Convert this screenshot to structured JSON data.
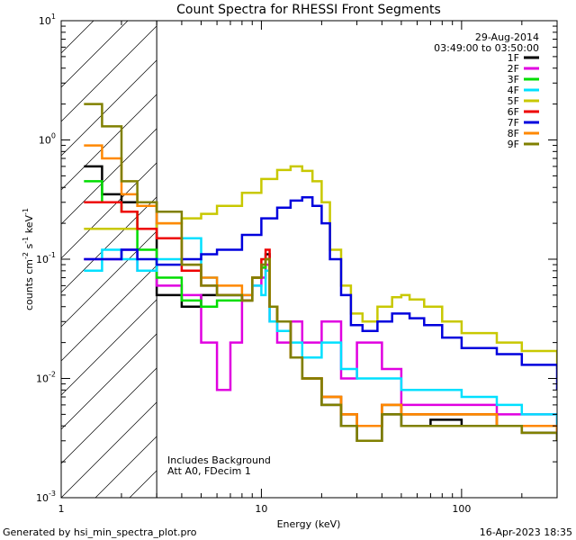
{
  "footer": {
    "generated_by": "Generated by hsi_min_spectra_plot.pro",
    "timestamp": "16-Apr-2023 18:35"
  },
  "chart_data": {
    "type": "line",
    "title": "Count Spectra for RHESSI Front Segments",
    "xlabel": "Energy (keV)",
    "ylabel_main": "counts cm",
    "ylabel_exp1": "-2",
    "ylabel_mid": " s",
    "ylabel_exp2": "-1",
    "ylabel_unit": " keV",
    "ylabel_exp3": "-1",
    "xscale": "log",
    "yscale": "log",
    "xlim": [
      1,
      300
    ],
    "ylim": [
      0.001,
      10
    ],
    "x_ticks": [
      {
        "value": 1,
        "label": "1"
      },
      {
        "value": 10,
        "label": "10"
      },
      {
        "value": 100,
        "label": "100"
      }
    ],
    "y_ticks": [
      {
        "value": 0.001,
        "base": "10",
        "exp": "-3"
      },
      {
        "value": 0.01,
        "base": "10",
        "exp": "-2"
      },
      {
        "value": 0.1,
        "base": "10",
        "exp": "-1"
      },
      {
        "value": 1,
        "base": "10",
        "exp": "0"
      },
      {
        "value": 10,
        "base": "10",
        "exp": "1"
      }
    ],
    "date": "29-Aug-2014",
    "time_range": "03:49:00 to 03:50:00",
    "annotation_lines": [
      "Includes Background",
      "Att A0, FDecim 1"
    ],
    "hatched_region": [
      1,
      3
    ],
    "legend_position": "top-right",
    "series": [
      {
        "name": "1F",
        "color": "#000000",
        "x": [
          1.3,
          1.6,
          2.0,
          2.4,
          3.0,
          4.0,
          5.0,
          6.0,
          8.0,
          9.0,
          10.0,
          10.5,
          11.0,
          12.0,
          14.0,
          16.0,
          20.0,
          25.0,
          30.0,
          40.0,
          50.0,
          70.0,
          100.0,
          150.0,
          200.0,
          300.0
        ],
        "y": [
          0.6,
          0.35,
          0.3,
          0.3,
          0.05,
          0.04,
          0.05,
          0.05,
          0.045,
          0.07,
          0.09,
          0.11,
          0.04,
          0.03,
          0.015,
          0.01,
          0.006,
          0.004,
          0.003,
          0.005,
          0.004,
          0.0045,
          0.004,
          0.004,
          0.0035,
          0.003
        ]
      },
      {
        "name": "2F",
        "color": "#e000e0",
        "x": [
          1.3,
          1.6,
          2.0,
          2.4,
          3.0,
          4.0,
          5.0,
          6.0,
          7.0,
          8.0,
          9.0,
          10.0,
          10.5,
          11.0,
          12.0,
          14.0,
          16.0,
          20.0,
          25.0,
          30.0,
          40.0,
          50.0,
          70.0,
          100.0,
          150.0,
          200.0,
          300.0
        ],
        "y": [
          0.1,
          0.1,
          0.12,
          0.08,
          0.06,
          0.05,
          0.02,
          0.008,
          0.02,
          0.05,
          0.06,
          0.07,
          0.09,
          0.03,
          0.02,
          0.03,
          0.02,
          0.03,
          0.01,
          0.02,
          0.012,
          0.006,
          0.006,
          0.006,
          0.005,
          0.005,
          0.004
        ]
      },
      {
        "name": "3F",
        "color": "#00dd00",
        "x": [
          1.3,
          1.6,
          2.0,
          2.4,
          3.0,
          4.0,
          5.0,
          6.0,
          8.0,
          9.0,
          10.0,
          10.5,
          11.0,
          12.0,
          14.0,
          16.0,
          20.0,
          25.0,
          30.0,
          40.0,
          50.0,
          70.0,
          100.0,
          150.0,
          200.0,
          300.0
        ],
        "y": [
          0.45,
          0.3,
          0.25,
          0.12,
          0.07,
          0.045,
          0.04,
          0.045,
          0.045,
          0.07,
          0.085,
          0.1,
          0.04,
          0.03,
          0.015,
          0.01,
          0.007,
          0.005,
          0.004,
          0.006,
          0.005,
          0.005,
          0.005,
          0.004,
          0.004,
          0.0035
        ]
      },
      {
        "name": "4F",
        "color": "#00e0ff",
        "x": [
          1.3,
          1.6,
          2.0,
          2.4,
          3.0,
          4.0,
          5.0,
          6.0,
          7.0,
          8.0,
          9.0,
          10.0,
          10.5,
          11.0,
          12.0,
          14.0,
          16.0,
          20.0,
          25.0,
          30.0,
          40.0,
          50.0,
          70.0,
          100.0,
          150.0,
          200.0,
          300.0
        ],
        "y": [
          0.08,
          0.12,
          0.1,
          0.08,
          0.1,
          0.15,
          0.07,
          0.05,
          0.05,
          0.05,
          0.06,
          0.05,
          0.08,
          0.03,
          0.025,
          0.02,
          0.015,
          0.02,
          0.012,
          0.01,
          0.01,
          0.008,
          0.008,
          0.007,
          0.006,
          0.005,
          0.004
        ]
      },
      {
        "name": "5F",
        "color": "#c8c800",
        "x": [
          1.3,
          1.6,
          2.0,
          2.4,
          3.0,
          4.0,
          5.0,
          6.0,
          8.0,
          10.0,
          12.0,
          14.0,
          16.0,
          18.0,
          20.0,
          22.0,
          25.0,
          28.0,
          32.0,
          38.0,
          45.0,
          50.0,
          55.0,
          65.0,
          80.0,
          100.0,
          150.0,
          200.0,
          300.0
        ],
        "y": [
          0.18,
          0.18,
          0.18,
          0.18,
          0.2,
          0.22,
          0.24,
          0.28,
          0.36,
          0.47,
          0.56,
          0.6,
          0.55,
          0.45,
          0.3,
          0.12,
          0.06,
          0.035,
          0.03,
          0.04,
          0.048,
          0.05,
          0.046,
          0.04,
          0.03,
          0.024,
          0.02,
          0.017,
          0.012
        ]
      },
      {
        "name": "6F",
        "color": "#ee0000",
        "x": [
          1.3,
          1.6,
          2.0,
          2.4,
          3.0,
          4.0,
          5.0,
          6.0,
          8.0,
          9.0,
          10.0,
          10.5,
          11.0,
          12.0,
          14.0,
          16.0,
          20.0,
          25.0,
          30.0,
          40.0,
          50.0,
          70.0,
          100.0,
          150.0,
          200.0,
          300.0
        ],
        "y": [
          0.3,
          0.3,
          0.25,
          0.18,
          0.15,
          0.08,
          0.06,
          0.05,
          0.045,
          0.07,
          0.1,
          0.12,
          0.04,
          0.03,
          0.015,
          0.01,
          0.007,
          0.005,
          0.004,
          0.006,
          0.005,
          0.005,
          0.005,
          0.004,
          0.004,
          0.0035
        ]
      },
      {
        "name": "7F",
        "color": "#0000dd",
        "x": [
          1.3,
          1.6,
          2.0,
          2.4,
          3.0,
          4.0,
          5.0,
          6.0,
          8.0,
          10.0,
          12.0,
          14.0,
          16.0,
          18.0,
          20.0,
          22.0,
          25.0,
          28.0,
          32.0,
          38.0,
          45.0,
          50.0,
          55.0,
          65.0,
          80.0,
          100.0,
          150.0,
          200.0,
          300.0
        ],
        "y": [
          0.1,
          0.1,
          0.12,
          0.1,
          0.09,
          0.1,
          0.11,
          0.12,
          0.16,
          0.22,
          0.27,
          0.31,
          0.33,
          0.28,
          0.2,
          0.1,
          0.05,
          0.028,
          0.025,
          0.03,
          0.035,
          0.035,
          0.032,
          0.028,
          0.022,
          0.018,
          0.016,
          0.013,
          0.008
        ]
      },
      {
        "name": "8F",
        "color": "#ff8800",
        "x": [
          1.3,
          1.6,
          2.0,
          2.4,
          3.0,
          4.0,
          5.0,
          6.0,
          8.0,
          9.0,
          10.0,
          10.5,
          11.0,
          12.0,
          14.0,
          16.0,
          20.0,
          25.0,
          30.0,
          40.0,
          50.0,
          70.0,
          100.0,
          150.0,
          200.0,
          300.0
        ],
        "y": [
          0.9,
          0.7,
          0.35,
          0.28,
          0.2,
          0.09,
          0.07,
          0.06,
          0.05,
          0.07,
          0.09,
          0.1,
          0.04,
          0.03,
          0.015,
          0.01,
          0.007,
          0.005,
          0.004,
          0.006,
          0.005,
          0.005,
          0.005,
          0.004,
          0.004,
          0.0035
        ]
      },
      {
        "name": "9F",
        "color": "#808000",
        "x": [
          1.3,
          1.6,
          2.0,
          2.4,
          3.0,
          4.0,
          5.0,
          6.0,
          8.0,
          9.0,
          10.0,
          10.5,
          11.0,
          12.0,
          14.0,
          16.0,
          20.0,
          25.0,
          30.0,
          40.0,
          50.0,
          70.0,
          100.0,
          150.0,
          200.0,
          300.0
        ],
        "y": [
          2.0,
          1.3,
          0.45,
          0.3,
          0.25,
          0.09,
          0.06,
          0.05,
          0.045,
          0.07,
          0.09,
          0.1,
          0.04,
          0.03,
          0.015,
          0.01,
          0.006,
          0.004,
          0.003,
          0.005,
          0.004,
          0.004,
          0.004,
          0.004,
          0.0035,
          0.003
        ]
      }
    ]
  }
}
